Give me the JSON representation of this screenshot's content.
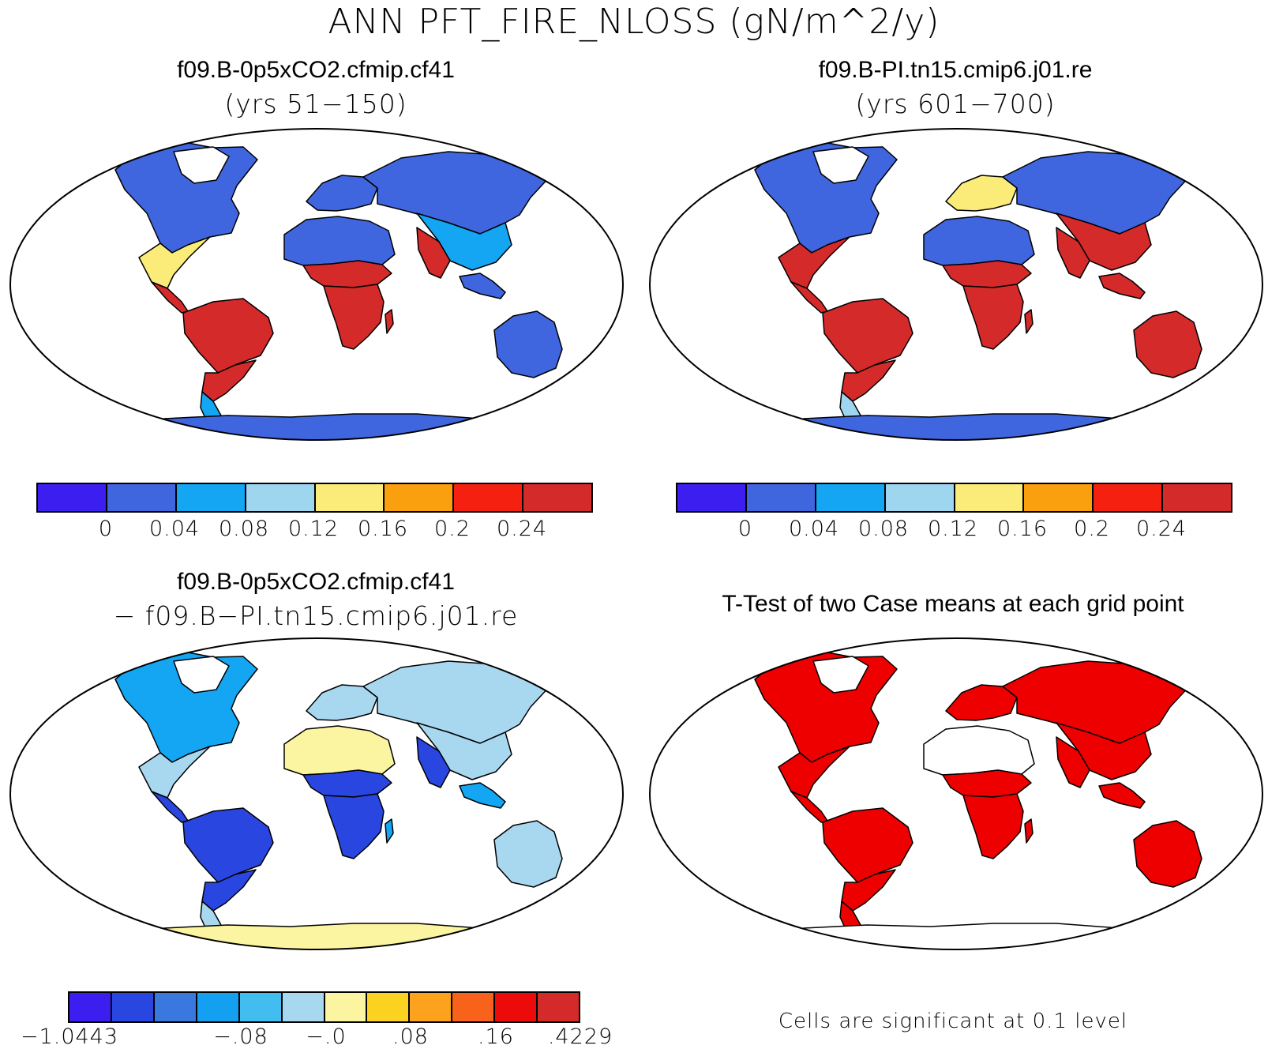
{
  "title": "ANN PFT_FIRE_NLOSS (gN/m^2/y)",
  "panels": {
    "top_left": {
      "case": "f09.B-0p5xCO2.cfmip.cf41",
      "years": "(yrs 51−150)",
      "colorbar": {
        "colors": [
          "#3c1ef0",
          "#3f66de",
          "#14a6f2",
          "#9fd6ef",
          "#fbec7a",
          "#fa9f0e",
          "#f5200f",
          "#d42a2a"
        ],
        "ticks": [
          "0",
          "0.04",
          "0.08",
          "0.12",
          "0.16",
          "0.2",
          "0.24"
        ]
      }
    },
    "top_right": {
      "case": "f09.B-PI.tn15.cmip6.j01.re",
      "years": "(yrs 601−700)",
      "colorbar": {
        "colors": [
          "#3c1ef0",
          "#3f66de",
          "#14a6f2",
          "#9fd6ef",
          "#fbec7a",
          "#fa9f0e",
          "#f5200f",
          "#d42a2a"
        ],
        "ticks": [
          "0",
          "0.04",
          "0.08",
          "0.12",
          "0.16",
          "0.2",
          "0.24"
        ]
      }
    },
    "bottom_left": {
      "case": "f09.B-0p5xCO2.cfmip.cf41",
      "minus_case": "− f09.B−PI.tn15.cmip6.j01.re",
      "colorbar": {
        "colors": [
          "#3c1ef0",
          "#2a46e0",
          "#3a78e0",
          "#14a0f0",
          "#42bdf0",
          "#a8d8f0",
          "#fbf4a0",
          "#fcd220",
          "#fca21c",
          "#f9621a",
          "#ec0a0a",
          "#d42a2a"
        ],
        "ticks": [
          "−1.0443",
          "−.08",
          "−.0",
          ".08",
          ".16",
          ".4229"
        ]
      }
    },
    "bottom_right": {
      "title": "T-Test of two Case means at each grid point",
      "note": "Cells are significant at 0.1 level",
      "significant_color": "#ee0000"
    }
  },
  "map_colors": {
    "ocean": "#ffffff",
    "coastline": "#000000",
    "low": "#3f66de",
    "mid_blue": "#14a6f2",
    "light_blue": "#9fd6ef",
    "yellow": "#fbec7a",
    "high": "#d42a2a",
    "diff_pale": "#fbf4a0",
    "diff_light_blue": "#a8d8f0",
    "diff_dark": "#2a46e0",
    "sig": "#ee0000"
  }
}
